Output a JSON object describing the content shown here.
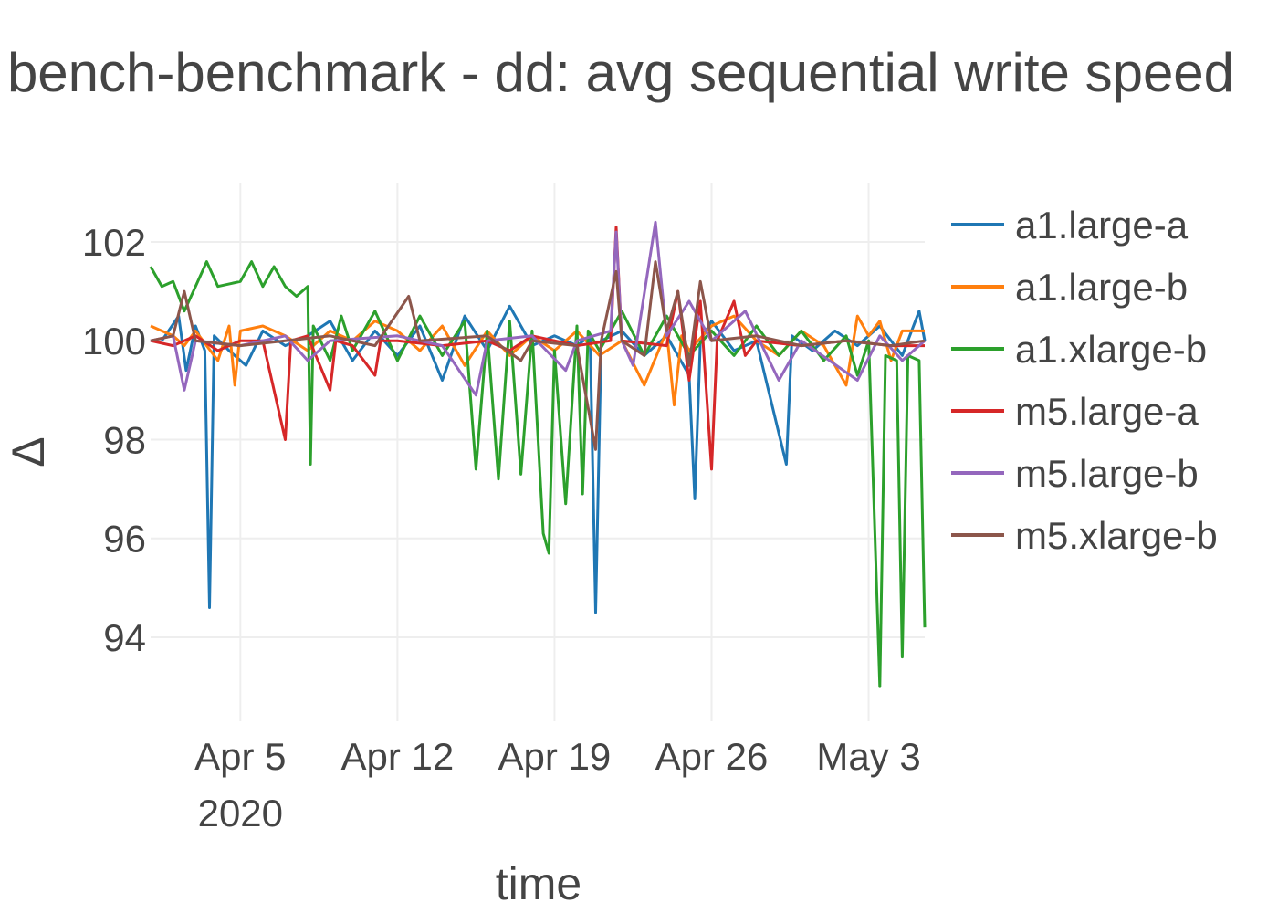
{
  "chart_data": {
    "type": "line",
    "title": "bench-benchmark - dd: avg sequential write speed",
    "xlabel": "time",
    "ylabel": "Δ",
    "x_range": [
      "2020-04-01T00:00",
      "2020-05-05T12:00"
    ],
    "ylim": [
      92.3,
      103.2
    ],
    "x_ticks": [
      {
        "date": "2020-04-05",
        "label": "Apr 5",
        "sublabel": "2020"
      },
      {
        "date": "2020-04-12",
        "label": "Apr 12",
        "sublabel": ""
      },
      {
        "date": "2020-04-19",
        "label": "Apr 19",
        "sublabel": ""
      },
      {
        "date": "2020-04-26",
        "label": "Apr 26",
        "sublabel": ""
      },
      {
        "date": "2020-05-03",
        "label": "May 3",
        "sublabel": ""
      }
    ],
    "y_ticks": [
      94,
      96,
      98,
      100,
      102
    ],
    "grid": true,
    "legend_position": "right",
    "series": [
      {
        "name": "a1.large-a",
        "color": "#1f77b4",
        "points": [
          [
            "2020-04-01T12:00",
            100.0
          ],
          [
            "2020-04-02T06:00",
            100.5
          ],
          [
            "2020-04-02T14:00",
            99.4
          ],
          [
            "2020-04-03T00:00",
            100.3
          ],
          [
            "2020-04-03T10:00",
            99.8
          ],
          [
            "2020-04-03T15:00",
            94.6
          ],
          [
            "2020-04-03T20:00",
            100.1
          ],
          [
            "2020-04-04T12:00",
            99.8
          ],
          [
            "2020-04-05T06:00",
            99.5
          ],
          [
            "2020-04-06T00:00",
            100.2
          ],
          [
            "2020-04-07T00:00",
            99.9
          ],
          [
            "2020-04-08T00:00",
            100.1
          ],
          [
            "2020-04-09T00:00",
            100.4
          ],
          [
            "2020-04-10T00:00",
            99.6
          ],
          [
            "2020-04-11T00:00",
            100.2
          ],
          [
            "2020-04-12T00:00",
            99.7
          ],
          [
            "2020-04-13T00:00",
            100.3
          ],
          [
            "2020-04-14T00:00",
            99.2
          ],
          [
            "2020-04-15T00:00",
            100.5
          ],
          [
            "2020-04-16T00:00",
            99.8
          ],
          [
            "2020-04-17T00:00",
            100.7
          ],
          [
            "2020-04-18T00:00",
            99.9
          ],
          [
            "2020-04-19T00:00",
            100.1
          ],
          [
            "2020-04-20T00:00",
            99.9
          ],
          [
            "2020-04-20T14:00",
            100.1
          ],
          [
            "2020-04-20T20:00",
            94.5
          ],
          [
            "2020-04-21T02:00",
            100.0
          ],
          [
            "2020-04-22T00:00",
            100.2
          ],
          [
            "2020-04-23T00:00",
            99.7
          ],
          [
            "2020-04-24T00:00",
            100.1
          ],
          [
            "2020-04-25T00:00",
            99.3
          ],
          [
            "2020-04-25T06:00",
            96.8
          ],
          [
            "2020-04-25T12:00",
            100.0
          ],
          [
            "2020-04-26T00:00",
            100.4
          ],
          [
            "2020-04-27T00:00",
            99.8
          ],
          [
            "2020-04-28T00:00",
            100.0
          ],
          [
            "2020-04-29T08:00",
            97.5
          ],
          [
            "2020-04-29T14:00",
            100.1
          ],
          [
            "2020-04-30T12:00",
            99.8
          ],
          [
            "2020-05-01T12:00",
            100.2
          ],
          [
            "2020-05-02T12:00",
            99.9
          ],
          [
            "2020-05-03T12:00",
            100.3
          ],
          [
            "2020-05-04T12:00",
            99.7
          ],
          [
            "2020-05-05T06:00",
            100.6
          ],
          [
            "2020-05-05T12:00",
            100.0
          ]
        ]
      },
      {
        "name": "a1.large-b",
        "color": "#ff7f0e",
        "points": [
          [
            "2020-04-01T00:00",
            100.3
          ],
          [
            "2020-04-02T00:00",
            100.1
          ],
          [
            "2020-04-02T12:00",
            99.9
          ],
          [
            "2020-04-03T00:00",
            100.2
          ],
          [
            "2020-04-04T00:00",
            99.6
          ],
          [
            "2020-04-04T12:00",
            100.3
          ],
          [
            "2020-04-04T18:00",
            99.1
          ],
          [
            "2020-04-05T00:00",
            100.2
          ],
          [
            "2020-04-06T00:00",
            100.3
          ],
          [
            "2020-04-07T00:00",
            100.1
          ],
          [
            "2020-04-08T00:00",
            99.8
          ],
          [
            "2020-04-09T00:00",
            100.2
          ],
          [
            "2020-04-10T00:00",
            100.0
          ],
          [
            "2020-04-11T00:00",
            100.4
          ],
          [
            "2020-04-12T00:00",
            100.2
          ],
          [
            "2020-04-13T00:00",
            99.8
          ],
          [
            "2020-04-14T00:00",
            100.3
          ],
          [
            "2020-04-15T00:00",
            99.5
          ],
          [
            "2020-04-16T00:00",
            100.2
          ],
          [
            "2020-04-17T00:00",
            99.7
          ],
          [
            "2020-04-18T00:00",
            100.1
          ],
          [
            "2020-04-19T00:00",
            99.8
          ],
          [
            "2020-04-20T00:00",
            100.2
          ],
          [
            "2020-04-21T00:00",
            99.7
          ],
          [
            "2020-04-22T00:00",
            100.0
          ],
          [
            "2020-04-23T00:00",
            99.1
          ],
          [
            "2020-04-24T00:00",
            100.2
          ],
          [
            "2020-04-24T08:00",
            98.7
          ],
          [
            "2020-04-24T16:00",
            100.1
          ],
          [
            "2020-04-25T00:00",
            99.8
          ],
          [
            "2020-04-26T00:00",
            100.3
          ],
          [
            "2020-04-27T00:00",
            100.5
          ],
          [
            "2020-04-28T00:00",
            100.0
          ],
          [
            "2020-04-29T00:00",
            99.7
          ],
          [
            "2020-04-30T00:00",
            100.2
          ],
          [
            "2020-05-01T00:00",
            99.9
          ],
          [
            "2020-05-02T00:00",
            99.1
          ],
          [
            "2020-05-02T12:00",
            100.5
          ],
          [
            "2020-05-03T00:00",
            100.1
          ],
          [
            "2020-05-03T12:00",
            100.4
          ],
          [
            "2020-05-04T00:00",
            99.6
          ],
          [
            "2020-05-04T12:00",
            100.2
          ],
          [
            "2020-05-05T12:00",
            100.2
          ]
        ]
      },
      {
        "name": "a1.xlarge-b",
        "color": "#2ca02c",
        "points": [
          [
            "2020-04-01T00:00",
            101.5
          ],
          [
            "2020-04-01T12:00",
            101.1
          ],
          [
            "2020-04-02T00:00",
            101.2
          ],
          [
            "2020-04-02T12:00",
            100.6
          ],
          [
            "2020-04-03T00:00",
            101.1
          ],
          [
            "2020-04-03T12:00",
            101.6
          ],
          [
            "2020-04-04T00:00",
            101.1
          ],
          [
            "2020-04-05T00:00",
            101.2
          ],
          [
            "2020-04-05T12:00",
            101.6
          ],
          [
            "2020-04-06T00:00",
            101.1
          ],
          [
            "2020-04-06T12:00",
            101.5
          ],
          [
            "2020-04-07T00:00",
            101.1
          ],
          [
            "2020-04-07T12:00",
            100.9
          ],
          [
            "2020-04-08T00:00",
            101.1
          ],
          [
            "2020-04-08T03:00",
            97.5
          ],
          [
            "2020-04-08T06:00",
            100.3
          ],
          [
            "2020-04-09T00:00",
            99.6
          ],
          [
            "2020-04-09T12:00",
            100.5
          ],
          [
            "2020-04-10T00:00",
            99.8
          ],
          [
            "2020-04-11T00:00",
            100.6
          ],
          [
            "2020-04-12T00:00",
            99.6
          ],
          [
            "2020-04-13T00:00",
            100.5
          ],
          [
            "2020-04-14T00:00",
            99.7
          ],
          [
            "2020-04-15T00:00",
            100.4
          ],
          [
            "2020-04-15T12:00",
            97.4
          ],
          [
            "2020-04-16T00:00",
            100.2
          ],
          [
            "2020-04-16T12:00",
            97.2
          ],
          [
            "2020-04-17T00:00",
            100.4
          ],
          [
            "2020-04-17T12:00",
            97.3
          ],
          [
            "2020-04-18T00:00",
            100.2
          ],
          [
            "2020-04-18T12:00",
            96.1
          ],
          [
            "2020-04-18T18:00",
            95.7
          ],
          [
            "2020-04-19T00:00",
            99.8
          ],
          [
            "2020-04-19T12:00",
            96.7
          ],
          [
            "2020-04-20T00:00",
            100.3
          ],
          [
            "2020-04-20T06:00",
            96.9
          ],
          [
            "2020-04-20T12:00",
            100.2
          ],
          [
            "2020-04-21T00:00",
            99.8
          ],
          [
            "2020-04-22T00:00",
            100.6
          ],
          [
            "2020-04-23T00:00",
            99.7
          ],
          [
            "2020-04-24T00:00",
            100.5
          ],
          [
            "2020-04-25T00:00",
            99.7
          ],
          [
            "2020-04-26T00:00",
            100.2
          ],
          [
            "2020-04-27T00:00",
            99.7
          ],
          [
            "2020-04-28T00:00",
            100.3
          ],
          [
            "2020-04-29T00:00",
            99.7
          ],
          [
            "2020-04-30T00:00",
            100.2
          ],
          [
            "2020-05-01T00:00",
            99.6
          ],
          [
            "2020-05-02T00:00",
            100.1
          ],
          [
            "2020-05-02T12:00",
            99.3
          ],
          [
            "2020-05-03T00:00",
            100.0
          ],
          [
            "2020-05-03T12:00",
            93.0
          ],
          [
            "2020-05-03T18:00",
            99.7
          ],
          [
            "2020-05-04T06:00",
            99.6
          ],
          [
            "2020-05-04T12:00",
            93.6
          ],
          [
            "2020-05-04T18:00",
            99.7
          ],
          [
            "2020-05-05T06:00",
            99.6
          ],
          [
            "2020-05-05T12:00",
            94.2
          ]
        ]
      },
      {
        "name": "m5.large-a",
        "color": "#d62728",
        "points": [
          [
            "2020-04-01T00:00",
            100.0
          ],
          [
            "2020-04-02T00:00",
            99.9
          ],
          [
            "2020-04-03T00:00",
            100.1
          ],
          [
            "2020-04-04T00:00",
            99.8
          ],
          [
            "2020-04-05T00:00",
            100.0
          ],
          [
            "2020-04-06T00:00",
            100.0
          ],
          [
            "2020-04-07T00:00",
            98.0
          ],
          [
            "2020-04-07T06:00",
            100.0
          ],
          [
            "2020-04-08T00:00",
            100.1
          ],
          [
            "2020-04-09T00:00",
            99.0
          ],
          [
            "2020-04-09T06:00",
            100.0
          ],
          [
            "2020-04-10T00:00",
            99.9
          ],
          [
            "2020-04-11T00:00",
            99.3
          ],
          [
            "2020-04-11T06:00",
            100.0
          ],
          [
            "2020-04-12T00:00",
            100.0
          ],
          [
            "2020-04-14T00:00",
            99.9
          ],
          [
            "2020-04-16T00:00",
            100.0
          ],
          [
            "2020-04-17T00:00",
            99.8
          ],
          [
            "2020-04-18T00:00",
            100.1
          ],
          [
            "2020-04-20T00:00",
            99.9
          ],
          [
            "2020-04-21T12:00",
            100.0
          ],
          [
            "2020-04-21T18:00",
            102.3
          ],
          [
            "2020-04-22T00:00",
            100.0
          ],
          [
            "2020-04-24T00:00",
            99.9
          ],
          [
            "2020-04-24T12:00",
            101.0
          ],
          [
            "2020-04-25T00:00",
            99.2
          ],
          [
            "2020-04-25T12:00",
            100.8
          ],
          [
            "2020-04-26T00:00",
            97.4
          ],
          [
            "2020-04-26T06:00",
            100.0
          ],
          [
            "2020-04-27T00:00",
            100.8
          ],
          [
            "2020-04-27T12:00",
            99.7
          ],
          [
            "2020-04-28T00:00",
            100.0
          ],
          [
            "2020-04-30T00:00",
            99.9
          ],
          [
            "2020-05-02T00:00",
            100.0
          ],
          [
            "2020-05-04T00:00",
            99.9
          ],
          [
            "2020-05-05T12:00",
            99.9
          ]
        ]
      },
      {
        "name": "m5.large-b",
        "color": "#9467bd",
        "points": [
          [
            "2020-04-01T00:00",
            100.0
          ],
          [
            "2020-04-02T00:00",
            100.1
          ],
          [
            "2020-04-02T12:00",
            99.0
          ],
          [
            "2020-04-03T00:00",
            100.0
          ],
          [
            "2020-04-05T00:00",
            99.9
          ],
          [
            "2020-04-07T00:00",
            100.1
          ],
          [
            "2020-04-08T00:00",
            99.6
          ],
          [
            "2020-04-09T00:00",
            100.0
          ],
          [
            "2020-04-12T00:00",
            100.1
          ],
          [
            "2020-04-14T00:00",
            99.9
          ],
          [
            "2020-04-15T12:00",
            98.9
          ],
          [
            "2020-04-16T00:00",
            100.0
          ],
          [
            "2020-04-18T00:00",
            100.1
          ],
          [
            "2020-04-19T12:00",
            99.4
          ],
          [
            "2020-04-20T00:00",
            100.0
          ],
          [
            "2020-04-21T12:00",
            100.2
          ],
          [
            "2020-04-21T18:00",
            102.2
          ],
          [
            "2020-04-22T00:00",
            100.0
          ],
          [
            "2020-04-22T12:00",
            99.5
          ],
          [
            "2020-04-23T12:00",
            102.4
          ],
          [
            "2020-04-24T00:00",
            100.1
          ],
          [
            "2020-04-25T00:00",
            100.8
          ],
          [
            "2020-04-26T00:00",
            100.0
          ],
          [
            "2020-04-27T12:00",
            100.6
          ],
          [
            "2020-04-29T00:00",
            99.2
          ],
          [
            "2020-04-30T00:00",
            100.0
          ],
          [
            "2020-05-02T12:00",
            99.2
          ],
          [
            "2020-05-03T12:00",
            100.1
          ],
          [
            "2020-05-04T12:00",
            99.6
          ],
          [
            "2020-05-05T12:00",
            100.0
          ]
        ]
      },
      {
        "name": "m5.xlarge-b",
        "color": "#8c564b",
        "points": [
          [
            "2020-04-01T00:00",
            100.0
          ],
          [
            "2020-04-02T00:00",
            100.1
          ],
          [
            "2020-04-02T12:00",
            101.0
          ],
          [
            "2020-04-03T00:00",
            100.0
          ],
          [
            "2020-04-05T00:00",
            99.9
          ],
          [
            "2020-04-07T00:00",
            100.0
          ],
          [
            "2020-04-09T00:00",
            100.1
          ],
          [
            "2020-04-11T00:00",
            99.9
          ],
          [
            "2020-04-12T12:00",
            100.9
          ],
          [
            "2020-04-13T00:00",
            100.0
          ],
          [
            "2020-04-16T00:00",
            100.1
          ],
          [
            "2020-04-17T12:00",
            99.6
          ],
          [
            "2020-04-18T00:00",
            100.0
          ],
          [
            "2020-04-20T00:00",
            99.9
          ],
          [
            "2020-04-20T20:00",
            97.8
          ],
          [
            "2020-04-21T02:00",
            100.0
          ],
          [
            "2020-04-21T18:00",
            101.4
          ],
          [
            "2020-04-22T00:00",
            100.0
          ],
          [
            "2020-04-23T00:00",
            99.7
          ],
          [
            "2020-04-23T12:00",
            101.6
          ],
          [
            "2020-04-24T00:00",
            100.2
          ],
          [
            "2020-04-24T12:00",
            101.0
          ],
          [
            "2020-04-25T00:00",
            99.5
          ],
          [
            "2020-04-25T12:00",
            101.2
          ],
          [
            "2020-04-26T00:00",
            100.0
          ],
          [
            "2020-04-28T00:00",
            100.1
          ],
          [
            "2020-04-30T00:00",
            99.9
          ],
          [
            "2020-05-02T00:00",
            100.0
          ],
          [
            "2020-05-04T00:00",
            99.9
          ],
          [
            "2020-05-05T12:00",
            100.0
          ]
        ]
      }
    ]
  }
}
